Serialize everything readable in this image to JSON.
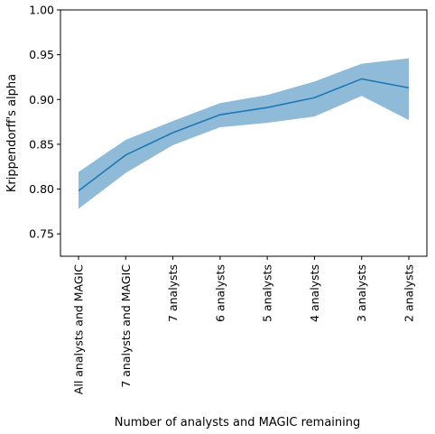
{
  "chart_data": {
    "type": "line",
    "title": "",
    "xlabel": "Number of analysts and MAGIC remaining",
    "ylabel": "Krippendorff's alpha",
    "categories": [
      "All analysts and MAGIC",
      "7 analysts and MAGIC",
      "7 analysts",
      "6 analysts",
      "5 analysts",
      "4 analysts",
      "3 analysts",
      "2 analysts"
    ],
    "ylim": [
      0.725,
      1.0
    ],
    "yticks": [
      0.75,
      0.8,
      0.85,
      0.9,
      0.95,
      1.0
    ],
    "ytick_labels": [
      "0.75",
      "0.80",
      "0.85",
      "0.90",
      "0.95",
      "1.00"
    ],
    "grid": false,
    "series": [
      {
        "values": [
          0.798,
          0.838,
          0.863,
          0.883,
          0.891,
          0.902,
          0.923,
          0.913
        ],
        "lower": [
          0.778,
          0.818,
          0.849,
          0.869,
          0.874,
          0.881,
          0.904,
          0.877
        ],
        "upper": [
          0.819,
          0.855,
          0.876,
          0.896,
          0.905,
          0.92,
          0.94,
          0.946
        ],
        "color": "#1f77b4",
        "band_color": "#1f77b4",
        "band_opacity": 0.5
      }
    ]
  }
}
